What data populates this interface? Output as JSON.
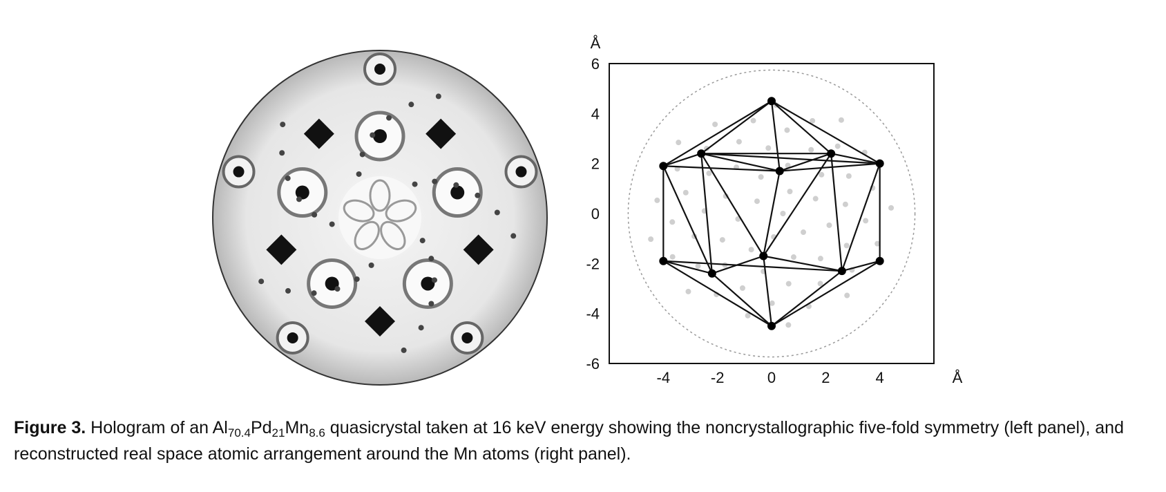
{
  "left_panel": {
    "type": "hologram"
  },
  "right_panel": {
    "axis_unit_y": "Å",
    "axis_unit_x": "Å",
    "y_ticks": [
      "6",
      "4",
      "2",
      "0",
      "-2",
      "-4",
      "-6"
    ],
    "x_ticks": [
      "-4",
      "-2",
      "0",
      "2",
      "4"
    ]
  },
  "chart_data": {
    "type": "scatter",
    "xlim": [
      -6,
      6
    ],
    "ylim": [
      -6,
      6
    ],
    "xlabel": "Å",
    "ylabel": "Å",
    "grid": false,
    "atoms": [
      {
        "x": 0.0,
        "y": 4.5
      },
      {
        "x": -4.0,
        "y": 1.9
      },
      {
        "x": -2.6,
        "y": 2.4
      },
      {
        "x": 0.3,
        "y": 1.7
      },
      {
        "x": 2.2,
        "y": 2.4
      },
      {
        "x": 4.0,
        "y": 2.0
      },
      {
        "x": -4.0,
        "y": -1.9
      },
      {
        "x": -2.2,
        "y": -2.4
      },
      {
        "x": -0.3,
        "y": -1.7
      },
      {
        "x": 2.6,
        "y": -2.3
      },
      {
        "x": 4.0,
        "y": -1.9
      },
      {
        "x": 0.0,
        "y": -4.5
      }
    ],
    "edges": [
      [
        0,
        1
      ],
      [
        0,
        2
      ],
      [
        0,
        3
      ],
      [
        0,
        4
      ],
      [
        0,
        5
      ],
      [
        1,
        2
      ],
      [
        2,
        3
      ],
      [
        3,
        4
      ],
      [
        4,
        5
      ],
      [
        1,
        3
      ],
      [
        2,
        4
      ],
      [
        3,
        5
      ],
      [
        2,
        5
      ],
      [
        1,
        6
      ],
      [
        1,
        7
      ],
      [
        2,
        7
      ],
      [
        2,
        8
      ],
      [
        3,
        8
      ],
      [
        4,
        8
      ],
      [
        4,
        9
      ],
      [
        5,
        9
      ],
      [
        5,
        10
      ],
      [
        6,
        7
      ],
      [
        7,
        8
      ],
      [
        8,
        9
      ],
      [
        9,
        10
      ],
      [
        6,
        9
      ],
      [
        6,
        11
      ],
      [
        7,
        11
      ],
      [
        8,
        11
      ],
      [
        9,
        11
      ],
      [
        10,
        11
      ]
    ]
  },
  "caption": {
    "label": "Figure 3.",
    "text_a": " Hologram of an Al",
    "sub_a": "70.4",
    "text_b": "Pd",
    "sub_b": "21",
    "text_c": "Mn",
    "sub_c": "8.6",
    "text_d": " quasicrystal taken at 16 keV energy showing the noncrystallographic five-fold symmetry (left panel), and reconstructed real space atomic arrangement around the Mn atoms (right panel)."
  }
}
